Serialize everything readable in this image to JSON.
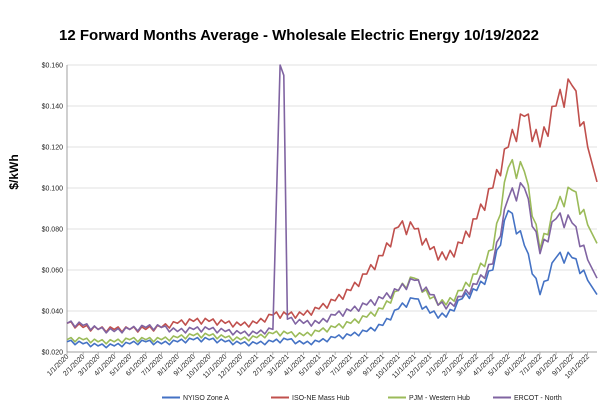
{
  "chart_data": {
    "type": "line",
    "title": "12 Forward Months Average - Wholesale Electric Energy 10/19/2022",
    "ylabel": "$/kWh",
    "xlabel": "",
    "ylim": [
      0.02,
      0.16
    ],
    "yticks": [
      "$0.020",
      "$0.040",
      "$0.060",
      "$0.080",
      "$0.100",
      "$0.120",
      "$0.140",
      "$0.160"
    ],
    "ytick_values": [
      0.02,
      0.04,
      0.06,
      0.08,
      0.1,
      0.12,
      0.14,
      0.16
    ],
    "xticks": [
      "1/1/2020",
      "2/1/2020",
      "3/1/2020",
      "4/1/2020",
      "5/1/2020",
      "6/1/2020",
      "7/1/2020",
      "8/1/2020",
      "9/1/2020",
      "10/1/2020",
      "11/1/2020",
      "12/1/2020",
      "1/1/2021",
      "2/1/2021",
      "3/1/2021",
      "4/1/2021",
      "5/1/2021",
      "6/1/2021",
      "7/1/2021",
      "8/1/2021",
      "9/1/2021",
      "10/1/2021",
      "11/1/2021",
      "12/1/2021",
      "1/1/2022",
      "2/1/2022",
      "3/1/2022",
      "4/1/2022",
      "5/1/2022",
      "6/1/2022",
      "7/1/2022",
      "8/1/2022",
      "9/1/2022",
      "10/1/2022"
    ],
    "x_start": "1/1/2020",
    "x_end": "10/19/2022",
    "grid": true,
    "legend_position": "bottom",
    "series": [
      {
        "name": "NYISO Zone A",
        "color": "#4472C4",
        "points": [
          [
            "1/1/2020",
            0.025
          ],
          [
            "2/1/2020",
            0.024
          ],
          [
            "3/1/2020",
            0.023
          ],
          [
            "4/1/2020",
            0.023
          ],
          [
            "5/1/2020",
            0.024
          ],
          [
            "6/1/2020",
            0.025
          ],
          [
            "7/1/2020",
            0.024
          ],
          [
            "8/1/2020",
            0.025
          ],
          [
            "9/1/2020",
            0.026
          ],
          [
            "10/1/2020",
            0.026
          ],
          [
            "11/1/2020",
            0.025
          ],
          [
            "12/1/2020",
            0.024
          ],
          [
            "1/1/2021",
            0.024
          ],
          [
            "2/1/2021",
            0.025
          ],
          [
            "3/1/2021",
            0.026
          ],
          [
            "4/1/2021",
            0.024
          ],
          [
            "5/1/2021",
            0.025
          ],
          [
            "6/1/2021",
            0.027
          ],
          [
            "7/1/2021",
            0.028
          ],
          [
            "8/1/2021",
            0.03
          ],
          [
            "9/1/2021",
            0.033
          ],
          [
            "10/1/2021",
            0.041
          ],
          [
            "11/1/2021",
            0.046
          ],
          [
            "12/1/2021",
            0.039
          ],
          [
            "1/1/2022",
            0.037
          ],
          [
            "2/1/2022",
            0.046
          ],
          [
            "3/1/2022",
            0.05
          ],
          [
            "4/1/2022",
            0.06
          ],
          [
            "5/1/2022",
            0.089
          ],
          [
            "6/1/2022",
            0.072
          ],
          [
            "7/1/2022",
            0.048
          ],
          [
            "8/1/2022",
            0.066
          ],
          [
            "9/1/2022",
            0.066
          ],
          [
            "10/1/2022",
            0.055
          ],
          [
            "10/19/2022",
            0.048
          ]
        ]
      },
      {
        "name": "ISO-NE Mass Hub",
        "color": "#C0504D",
        "points": [
          [
            "1/1/2020",
            0.034
          ],
          [
            "2/1/2020",
            0.032
          ],
          [
            "3/1/2020",
            0.031
          ],
          [
            "4/1/2020",
            0.031
          ],
          [
            "5/1/2020",
            0.031
          ],
          [
            "6/1/2020",
            0.031
          ],
          [
            "7/1/2020",
            0.032
          ],
          [
            "8/1/2020",
            0.034
          ],
          [
            "9/1/2020",
            0.035
          ],
          [
            "10/1/2020",
            0.035
          ],
          [
            "11/1/2020",
            0.034
          ],
          [
            "12/1/2020",
            0.033
          ],
          [
            "1/1/2021",
            0.034
          ],
          [
            "2/1/2021",
            0.038
          ],
          [
            "3/1/2021",
            0.038
          ],
          [
            "4/1/2021",
            0.038
          ],
          [
            "5/1/2021",
            0.041
          ],
          [
            "6/1/2021",
            0.045
          ],
          [
            "7/1/2021",
            0.05
          ],
          [
            "8/1/2021",
            0.058
          ],
          [
            "9/1/2021",
            0.067
          ],
          [
            "10/1/2021",
            0.081
          ],
          [
            "11/1/2021",
            0.08
          ],
          [
            "12/1/2021",
            0.07
          ],
          [
            "1/1/2022",
            0.065
          ],
          [
            "2/1/2022",
            0.073
          ],
          [
            "3/1/2022",
            0.085
          ],
          [
            "4/1/2022",
            0.1
          ],
          [
            "5/1/2022",
            0.12
          ],
          [
            "6/1/2022",
            0.135
          ],
          [
            "7/1/2022",
            0.12
          ],
          [
            "8/1/2022",
            0.14
          ],
          [
            "9/1/2022",
            0.15
          ],
          [
            "10/1/2022",
            0.12
          ],
          [
            "10/19/2022",
            0.103
          ]
        ]
      },
      {
        "name": "PJM - Western Hub",
        "color": "#9BBB59",
        "points": [
          [
            "1/1/2020",
            0.026
          ],
          [
            "2/1/2020",
            0.026
          ],
          [
            "3/1/2020",
            0.025
          ],
          [
            "4/1/2020",
            0.025
          ],
          [
            "5/1/2020",
            0.026
          ],
          [
            "6/1/2020",
            0.026
          ],
          [
            "7/1/2020",
            0.026
          ],
          [
            "8/1/2020",
            0.027
          ],
          [
            "9/1/2020",
            0.028
          ],
          [
            "10/1/2020",
            0.028
          ],
          [
            "11/1/2020",
            0.027
          ],
          [
            "12/1/2020",
            0.026
          ],
          [
            "1/1/2021",
            0.027
          ],
          [
            "2/1/2021",
            0.029
          ],
          [
            "3/1/2021",
            0.029
          ],
          [
            "4/1/2021",
            0.028
          ],
          [
            "5/1/2021",
            0.03
          ],
          [
            "6/1/2021",
            0.032
          ],
          [
            "7/1/2021",
            0.034
          ],
          [
            "8/1/2021",
            0.037
          ],
          [
            "9/1/2021",
            0.041
          ],
          [
            "10/1/2021",
            0.05
          ],
          [
            "11/1/2021",
            0.056
          ],
          [
            "12/1/2021",
            0.046
          ],
          [
            "1/1/2022",
            0.043
          ],
          [
            "2/1/2022",
            0.05
          ],
          [
            "3/1/2022",
            0.058
          ],
          [
            "4/1/2022",
            0.07
          ],
          [
            "5/1/2022",
            0.11
          ],
          [
            "6/1/2022",
            0.108
          ],
          [
            "7/1/2022",
            0.07
          ],
          [
            "8/1/2022",
            0.09
          ],
          [
            "9/1/2022",
            0.099
          ],
          [
            "10/1/2022",
            0.082
          ],
          [
            "10/19/2022",
            0.073
          ]
        ]
      },
      {
        "name": "ERCOT - North",
        "color": "#8064A2",
        "points": [
          [
            "1/1/2020",
            0.034
          ],
          [
            "2/1/2020",
            0.033
          ],
          [
            "3/1/2020",
            0.031
          ],
          [
            "4/1/2020",
            0.03
          ],
          [
            "5/1/2020",
            0.031
          ],
          [
            "6/1/2020",
            0.032
          ],
          [
            "7/1/2020",
            0.032
          ],
          [
            "8/1/2020",
            0.03
          ],
          [
            "9/1/2020",
            0.031
          ],
          [
            "10/1/2020",
            0.031
          ],
          [
            "11/1/2020",
            0.03
          ],
          [
            "12/1/2020",
            0.029
          ],
          [
            "1/1/2021",
            0.029
          ],
          [
            "2/1/2021",
            0.031
          ],
          [
            "2/15/2021",
            0.16
          ],
          [
            "2/22/2021",
            0.155
          ],
          [
            "3/1/2021",
            0.036
          ],
          [
            "4/1/2021",
            0.034
          ],
          [
            "5/1/2021",
            0.034
          ],
          [
            "6/1/2021",
            0.038
          ],
          [
            "7/1/2021",
            0.04
          ],
          [
            "8/1/2021",
            0.043
          ],
          [
            "9/1/2021",
            0.046
          ],
          [
            "10/1/2021",
            0.05
          ],
          [
            "11/1/2021",
            0.055
          ],
          [
            "12/1/2021",
            0.048
          ],
          [
            "1/1/2022",
            0.041
          ],
          [
            "2/1/2022",
            0.047
          ],
          [
            "3/1/2022",
            0.053
          ],
          [
            "4/1/2022",
            0.063
          ],
          [
            "5/1/2022",
            0.095
          ],
          [
            "6/1/2022",
            0.1
          ],
          [
            "7/1/2022",
            0.068
          ],
          [
            "8/1/2022",
            0.085
          ],
          [
            "9/1/2022",
            0.083
          ],
          [
            "10/1/2022",
            0.065
          ],
          [
            "10/19/2022",
            0.056
          ]
        ]
      }
    ]
  }
}
